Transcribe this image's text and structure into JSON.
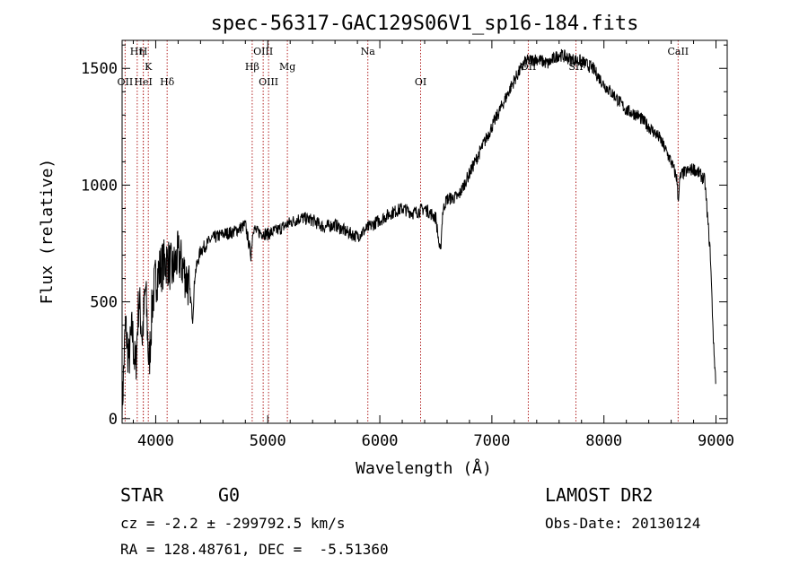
{
  "chart_data": {
    "type": "line",
    "title": "spec-56317-GAC129S06V1_sp16-184.fits",
    "xlabel": "Wavelength (Å)",
    "ylabel": "Flux (relative)",
    "xlim": [
      3700,
      9100
    ],
    "ylim": [
      -20,
      1620
    ],
    "xticks": [
      4000,
      5000,
      6000,
      7000,
      8000,
      9000
    ],
    "yticks": [
      0,
      500,
      1000,
      1500
    ],
    "grid": false,
    "series": [
      {
        "x": [
          3700,
          3730,
          3760,
          3790,
          3820,
          3850,
          3880,
          3910,
          3940,
          3970,
          4000,
          4050,
          4100,
          4150,
          4200,
          4250,
          4300,
          4330,
          4350,
          4400,
          4500,
          4600,
          4700,
          4800,
          4850,
          4870,
          4900,
          5000,
          5100,
          5200,
          5300,
          5400,
          5500,
          5600,
          5700,
          5800,
          5900,
          6000,
          6100,
          6200,
          6300,
          6400,
          6500,
          6540,
          6560,
          6580,
          6600,
          6700,
          6800,
          6900,
          7000,
          7100,
          7200,
          7300,
          7400,
          7500,
          7600,
          7700,
          7800,
          7900,
          8000,
          8100,
          8200,
          8300,
          8400,
          8500,
          8600,
          8650,
          8662,
          8680,
          8700,
          8800,
          8850,
          8900,
          8950,
          8980,
          9000
        ],
        "y": [
          30,
          400,
          250,
          380,
          200,
          520,
          350,
          560,
          220,
          500,
          600,
          650,
          680,
          630,
          700,
          640,
          560,
          430,
          620,
          720,
          770,
          790,
          800,
          830,
          700,
          820,
          800,
          790,
          810,
          840,
          860,
          850,
          820,
          830,
          800,
          780,
          820,
          850,
          880,
          900,
          880,
          900,
          860,
          700,
          880,
          920,
          940,
          950,
          1050,
          1150,
          1250,
          1350,
          1450,
          1530,
          1540,
          1520,
          1560,
          1540,
          1530,
          1500,
          1430,
          1380,
          1320,
          1300,
          1250,
          1200,
          1100,
          1030,
          940,
          1030,
          1050,
          1070,
          1050,
          1020,
          700,
          300,
          150
        ]
      }
    ],
    "spectral_lines": [
      {
        "label": "OII",
        "x": 3727,
        "row": 3
      },
      {
        "label": "Hη",
        "x": 3835,
        "row": 1
      },
      {
        "label": "H",
        "x": 3889,
        "row": 1
      },
      {
        "label": "HeI",
        "x": 3889,
        "row": 3
      },
      {
        "label": "K",
        "x": 3934,
        "row": 2
      },
      {
        "label": "Hδ",
        "x": 4102,
        "row": 3
      },
      {
        "label": "Hβ",
        "x": 4861,
        "row": 2
      },
      {
        "label": "OIII",
        "x": 4959,
        "row": 1
      },
      {
        "label": "OIII",
        "x": 5007,
        "row": 3
      },
      {
        "label": "Mg",
        "x": 5175,
        "row": 2
      },
      {
        "label": "Na",
        "x": 5893,
        "row": 1
      },
      {
        "label": "OI",
        "x": 6364,
        "row": 3
      },
      {
        "label": "OII",
        "x": 7325,
        "row": 2
      },
      {
        "label": "SII",
        "x": 7750,
        "row": 2
      },
      {
        "label": "CaII",
        "x": 8662,
        "row": 1
      }
    ]
  },
  "info": {
    "object_type": "STAR",
    "subclass": "G0",
    "survey": "LAMOST DR2",
    "cz_line": "cz = -2.2 ± -299792.5 km/s",
    "obs_date_line": "Obs-Date: 20130124",
    "radec_line": "RA = 128.48761, DEC =  -5.51360"
  }
}
